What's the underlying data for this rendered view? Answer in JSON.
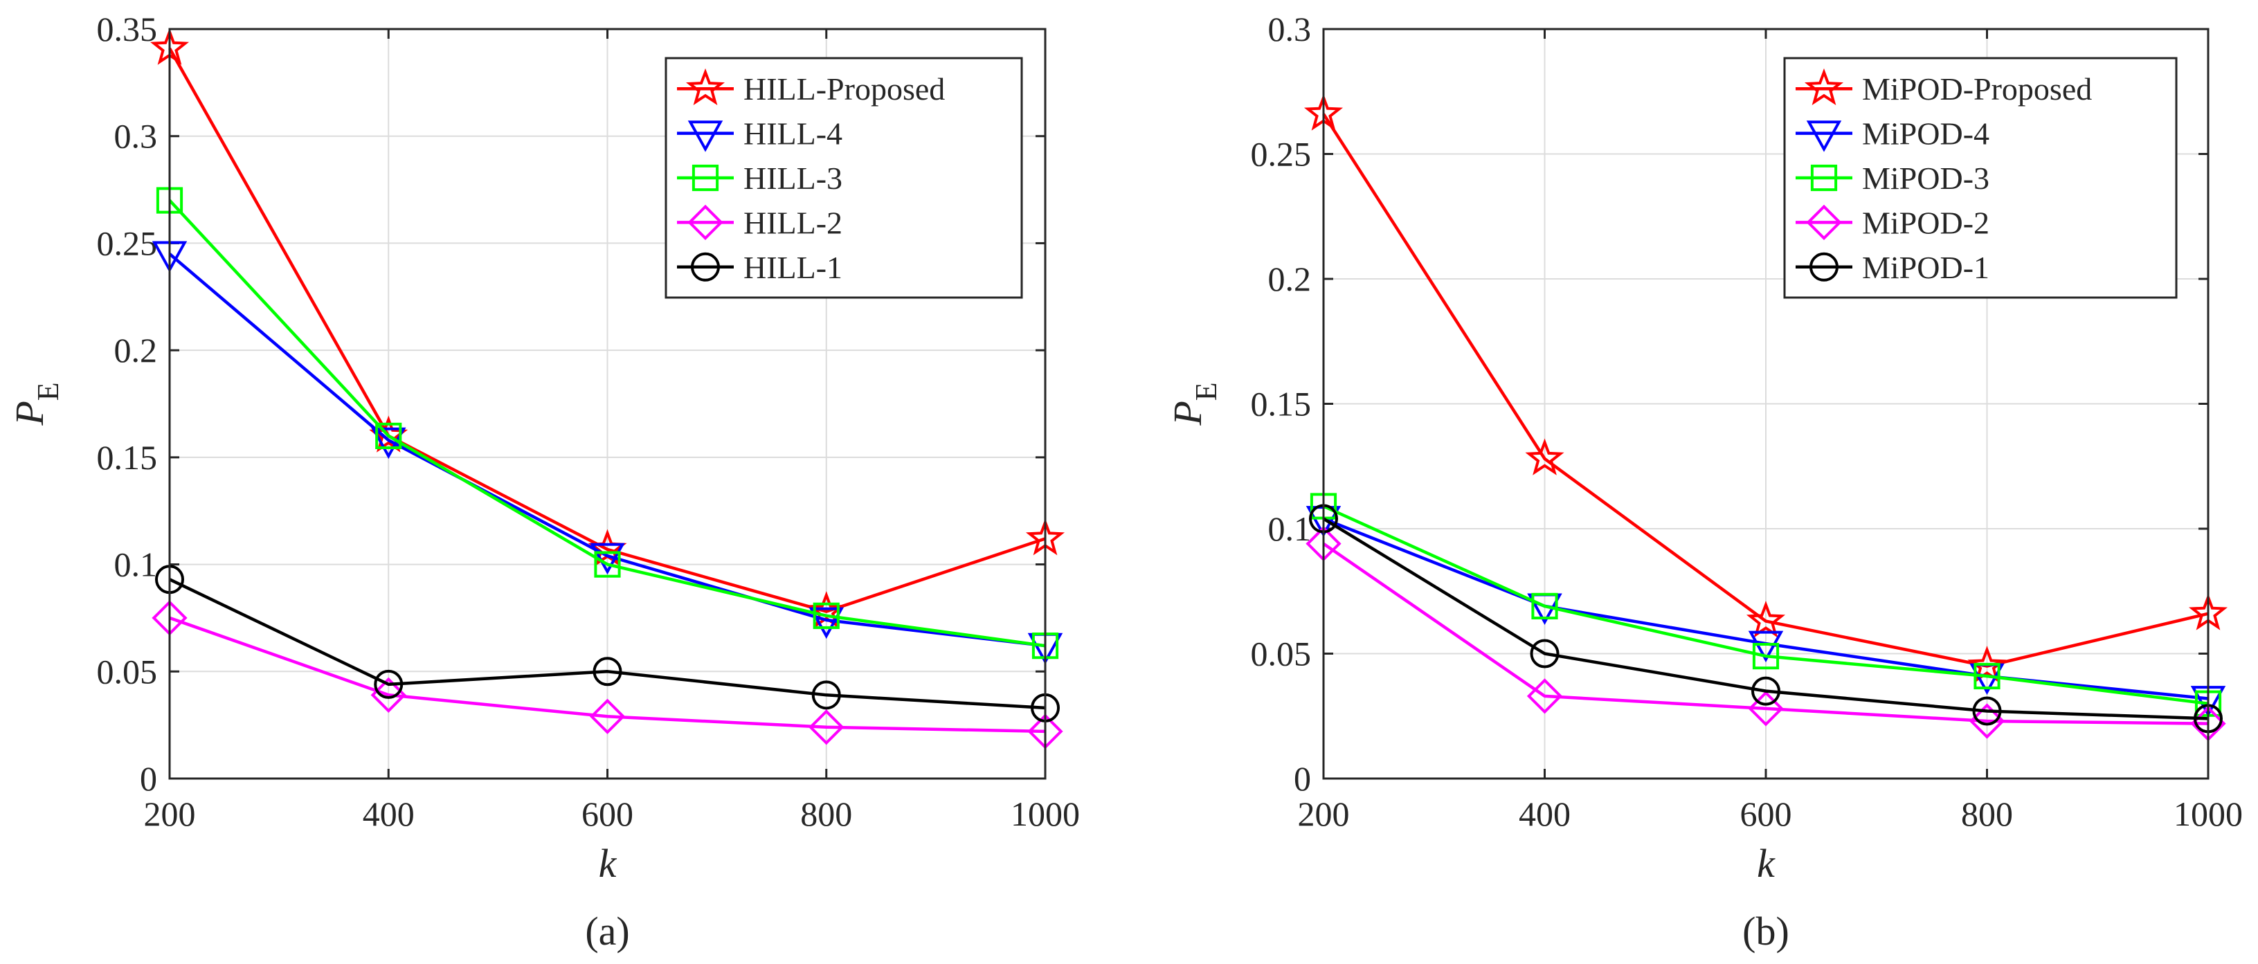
{
  "chart_data": [
    {
      "type": "line",
      "caption": "(a)",
      "xlabel": "k",
      "ylabel": {
        "main": "P",
        "sub": "E"
      },
      "x": [
        200,
        400,
        600,
        800,
        1000
      ],
      "xlim": [
        200,
        1000
      ],
      "ylim": [
        0,
        0.35
      ],
      "xticks": [
        200,
        400,
        600,
        800,
        1000
      ],
      "xtick_labels": [
        "200",
        "400",
        "600",
        "800",
        "1000"
      ],
      "yticks": [
        0,
        0.05,
        0.1,
        0.15,
        0.2,
        0.25,
        0.3,
        0.35
      ],
      "ytick_labels": [
        "0",
        "0.05",
        "0.1",
        "0.15",
        "0.2",
        "0.25",
        "0.3",
        "0.35"
      ],
      "grid": true,
      "legend_position": "top-right",
      "series": [
        {
          "name": "HILL-Proposed",
          "color": "#ff0000",
          "marker": "star",
          "values": [
            0.341,
            0.16,
            0.107,
            0.078,
            0.112
          ]
        },
        {
          "name": "HILL-4",
          "color": "#0000ff",
          "marker": "triangle-down",
          "values": [
            0.245,
            0.158,
            0.104,
            0.074,
            0.062
          ]
        },
        {
          "name": "HILL-3",
          "color": "#00ff00",
          "marker": "square",
          "values": [
            0.27,
            0.16,
            0.1,
            0.076,
            0.062
          ]
        },
        {
          "name": "HILL-2",
          "color": "#ff00ff",
          "marker": "diamond",
          "values": [
            0.075,
            0.039,
            0.029,
            0.024,
            0.022
          ]
        },
        {
          "name": "HILL-1",
          "color": "#000000",
          "marker": "circle",
          "values": [
            0.093,
            0.044,
            0.05,
            0.039,
            0.033
          ]
        }
      ]
    },
    {
      "type": "line",
      "caption": "(b)",
      "xlabel": "k",
      "ylabel": {
        "main": "P",
        "sub": "E"
      },
      "x": [
        200,
        400,
        600,
        800,
        1000
      ],
      "xlim": [
        200,
        1000
      ],
      "ylim": [
        0,
        0.3
      ],
      "xticks": [
        200,
        400,
        600,
        800,
        1000
      ],
      "xtick_labels": [
        "200",
        "400",
        "600",
        "800",
        "1000"
      ],
      "yticks": [
        0,
        0.05,
        0.1,
        0.15,
        0.2,
        0.25,
        0.3
      ],
      "ytick_labels": [
        "0",
        "0.05",
        "0.1",
        "0.15",
        "0.2",
        "0.25",
        "0.3"
      ],
      "grid": true,
      "legend_position": "top-right",
      "series": [
        {
          "name": "MiPOD-Proposed",
          "color": "#ff0000",
          "marker": "star",
          "values": [
            0.266,
            0.128,
            0.063,
            0.045,
            0.066
          ]
        },
        {
          "name": "MiPOD-4",
          "color": "#0000ff",
          "marker": "triangle-down",
          "values": [
            0.104,
            0.069,
            0.054,
            0.041,
            0.032
          ]
        },
        {
          "name": "MiPOD-3",
          "color": "#00ff00",
          "marker": "square",
          "values": [
            0.109,
            0.069,
            0.049,
            0.041,
            0.03
          ]
        },
        {
          "name": "MiPOD-2",
          "color": "#ff00ff",
          "marker": "diamond",
          "values": [
            0.094,
            0.033,
            0.028,
            0.023,
            0.022
          ]
        },
        {
          "name": "MiPOD-1",
          "color": "#000000",
          "marker": "circle",
          "values": [
            0.104,
            0.05,
            0.035,
            0.027,
            0.024
          ]
        }
      ]
    }
  ]
}
